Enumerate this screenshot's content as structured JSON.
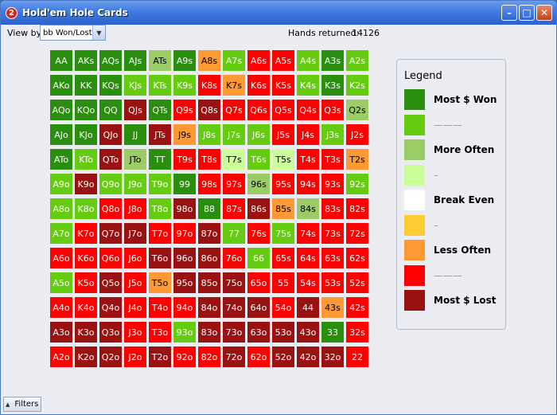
{
  "window": {
    "title": "Hold'em Hole Cards",
    "icon_text": "2"
  },
  "titlebar_buttons": {
    "minimize": "–",
    "maximize": "□",
    "close": "✕"
  },
  "toolbar": {
    "viewby_label": "View by:",
    "viewby_value": "bb Won/Lost",
    "hands_label": "Hands returned:",
    "hands_value": "14126"
  },
  "legend": {
    "title": "Legend",
    "items": [
      {
        "label": "Most $ Won",
        "color": "#2a8f0f"
      },
      {
        "label": "———",
        "color": "#66cc11"
      },
      {
        "label": "More Often",
        "color": "#9bcc66"
      },
      {
        "label": "–",
        "color": "#ccff99"
      },
      {
        "label": "Break Even",
        "color": "#ffffff"
      },
      {
        "label": "–",
        "color": "#ffcc33"
      },
      {
        "label": "Less Often",
        "color": "#ff9933"
      },
      {
        "label": "———",
        "color": "#ff0000"
      },
      {
        "label": "Most $ Lost",
        "color": "#991111"
      }
    ]
  },
  "statusbar": {
    "filters_label": "Filters"
  },
  "grid": {
    "colors": {
      "A": "#2a8f0f",
      "B": "#66cc11",
      "C": "#9bcc66",
      "D": "#ccff99",
      "E": "#ffcc33",
      "F": "#ff9933",
      "G": "#ff0000",
      "H": "#991111"
    },
    "rows": [
      [
        [
          "AA",
          "A"
        ],
        [
          "AKs",
          "A"
        ],
        [
          "AQs",
          "A"
        ],
        [
          "AJs",
          "A"
        ],
        [
          "ATs",
          "C"
        ],
        [
          "A9s",
          "A"
        ],
        [
          "A8s",
          "F"
        ],
        [
          "A7s",
          "B"
        ],
        [
          "A6s",
          "G"
        ],
        [
          "A5s",
          "G"
        ],
        [
          "A4s",
          "B"
        ],
        [
          "A3s",
          "A"
        ],
        [
          "A2s",
          "B"
        ]
      ],
      [
        [
          "AKo",
          "A"
        ],
        [
          "KK",
          "A"
        ],
        [
          "KQs",
          "A"
        ],
        [
          "KJs",
          "B"
        ],
        [
          "KTs",
          "B"
        ],
        [
          "K9s",
          "B"
        ],
        [
          "K8s",
          "G"
        ],
        [
          "K7s",
          "F"
        ],
        [
          "K6s",
          "G"
        ],
        [
          "K5s",
          "G"
        ],
        [
          "K4s",
          "B"
        ],
        [
          "K3s",
          "A"
        ],
        [
          "K2s",
          "B"
        ]
      ],
      [
        [
          "AQo",
          "A"
        ],
        [
          "KQo",
          "A"
        ],
        [
          "QQ",
          "A"
        ],
        [
          "QJs",
          "H"
        ],
        [
          "QTs",
          "A"
        ],
        [
          "Q9s",
          "G"
        ],
        [
          "Q8s",
          "H"
        ],
        [
          "Q7s",
          "G"
        ],
        [
          "Q6s",
          "G"
        ],
        [
          "Q5s",
          "G"
        ],
        [
          "Q4s",
          "G"
        ],
        [
          "Q3s",
          "G"
        ],
        [
          "Q2s",
          "C"
        ]
      ],
      [
        [
          "AJo",
          "A"
        ],
        [
          "KJo",
          "A"
        ],
        [
          "QJo",
          "H"
        ],
        [
          "JJ",
          "A"
        ],
        [
          "JTs",
          "H"
        ],
        [
          "J9s",
          "F"
        ],
        [
          "J8s",
          "B"
        ],
        [
          "J7s",
          "B"
        ],
        [
          "J6s",
          "B"
        ],
        [
          "J5s",
          "G"
        ],
        [
          "J4s",
          "G"
        ],
        [
          "J3s",
          "B"
        ],
        [
          "J2s",
          "G"
        ]
      ],
      [
        [
          "ATo",
          "A"
        ],
        [
          "KTo",
          "B"
        ],
        [
          "QTo",
          "H"
        ],
        [
          "JTo",
          "C"
        ],
        [
          "TT",
          "A"
        ],
        [
          "T9s",
          "G"
        ],
        [
          "T8s",
          "G"
        ],
        [
          "T7s",
          "D"
        ],
        [
          "T6s",
          "B"
        ],
        [
          "T5s",
          "D"
        ],
        [
          "T4s",
          "G"
        ],
        [
          "T3s",
          "G"
        ],
        [
          "T2s",
          "F"
        ]
      ],
      [
        [
          "A9o",
          "B"
        ],
        [
          "K9o",
          "H"
        ],
        [
          "Q9o",
          "B"
        ],
        [
          "J9o",
          "B"
        ],
        [
          "T9o",
          "B"
        ],
        [
          "99",
          "A"
        ],
        [
          "98s",
          "G"
        ],
        [
          "97s",
          "G"
        ],
        [
          "96s",
          "C"
        ],
        [
          "95s",
          "G"
        ],
        [
          "94s",
          "G"
        ],
        [
          "93s",
          "G"
        ],
        [
          "92s",
          "B"
        ]
      ],
      [
        [
          "A8o",
          "B"
        ],
        [
          "K8o",
          "B"
        ],
        [
          "Q8o",
          "G"
        ],
        [
          "J8o",
          "G"
        ],
        [
          "T8o",
          "B"
        ],
        [
          "98o",
          "H"
        ],
        [
          "88",
          "A"
        ],
        [
          "87s",
          "G"
        ],
        [
          "86s",
          "H"
        ],
        [
          "85s",
          "F"
        ],
        [
          "84s",
          "C"
        ],
        [
          "83s",
          "G"
        ],
        [
          "82s",
          "G"
        ]
      ],
      [
        [
          "A7o",
          "B"
        ],
        [
          "K7o",
          "G"
        ],
        [
          "Q7o",
          "H"
        ],
        [
          "J7o",
          "H"
        ],
        [
          "T7o",
          "G"
        ],
        [
          "97o",
          "G"
        ],
        [
          "87o",
          "H"
        ],
        [
          "77",
          "B"
        ],
        [
          "76s",
          "G"
        ],
        [
          "75s",
          "B"
        ],
        [
          "74s",
          "G"
        ],
        [
          "73s",
          "G"
        ],
        [
          "72s",
          "G"
        ]
      ],
      [
        [
          "A6o",
          "G"
        ],
        [
          "K6o",
          "G"
        ],
        [
          "Q6o",
          "G"
        ],
        [
          "J6o",
          "G"
        ],
        [
          "T6o",
          "H"
        ],
        [
          "96o",
          "H"
        ],
        [
          "86o",
          "H"
        ],
        [
          "76o",
          "G"
        ],
        [
          "66",
          "B"
        ],
        [
          "65s",
          "G"
        ],
        [
          "64s",
          "G"
        ],
        [
          "63s",
          "G"
        ],
        [
          "62s",
          "G"
        ]
      ],
      [
        [
          "A5o",
          "B"
        ],
        [
          "K5o",
          "G"
        ],
        [
          "Q5o",
          "H"
        ],
        [
          "J5o",
          "G"
        ],
        [
          "T5o",
          "F"
        ],
        [
          "95o",
          "H"
        ],
        [
          "85o",
          "H"
        ],
        [
          "75o",
          "H"
        ],
        [
          "65o",
          "G"
        ],
        [
          "55",
          "G"
        ],
        [
          "54s",
          "G"
        ],
        [
          "53s",
          "G"
        ],
        [
          "52s",
          "G"
        ]
      ],
      [
        [
          "A4o",
          "G"
        ],
        [
          "K4o",
          "G"
        ],
        [
          "Q4o",
          "H"
        ],
        [
          "J4o",
          "G"
        ],
        [
          "T4o",
          "G"
        ],
        [
          "94o",
          "G"
        ],
        [
          "84o",
          "H"
        ],
        [
          "74o",
          "H"
        ],
        [
          "64o",
          "H"
        ],
        [
          "54o",
          "G"
        ],
        [
          "44",
          "H"
        ],
        [
          "43s",
          "F"
        ],
        [
          "42s",
          "G"
        ]
      ],
      [
        [
          "A3o",
          "H"
        ],
        [
          "K3o",
          "H"
        ],
        [
          "Q3o",
          "H"
        ],
        [
          "J3o",
          "G"
        ],
        [
          "T3o",
          "G"
        ],
        [
          "93o",
          "B"
        ],
        [
          "83o",
          "H"
        ],
        [
          "73o",
          "H"
        ],
        [
          "63o",
          "H"
        ],
        [
          "53o",
          "H"
        ],
        [
          "43o",
          "H"
        ],
        [
          "33",
          "A"
        ],
        [
          "32s",
          "G"
        ]
      ],
      [
        [
          "A2o",
          "G"
        ],
        [
          "K2o",
          "H"
        ],
        [
          "Q2o",
          "H"
        ],
        [
          "J2o",
          "G"
        ],
        [
          "T2o",
          "H"
        ],
        [
          "92o",
          "G"
        ],
        [
          "82o",
          "G"
        ],
        [
          "72o",
          "H"
        ],
        [
          "62o",
          "G"
        ],
        [
          "52o",
          "H"
        ],
        [
          "42o",
          "H"
        ],
        [
          "32o",
          "H"
        ],
        [
          "22",
          "G"
        ]
      ]
    ]
  }
}
